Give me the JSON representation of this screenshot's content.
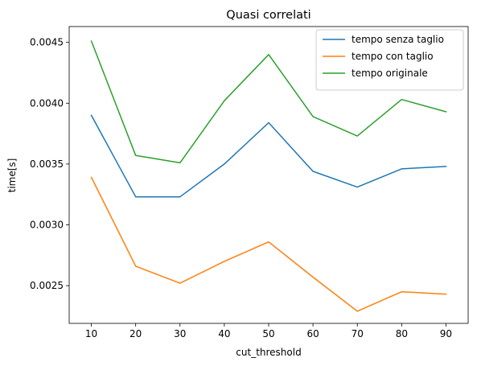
{
  "chart_data": {
    "type": "line",
    "title": "Quasi correlati",
    "xlabel": "cut_threshold",
    "ylabel": "time[s]",
    "x": [
      10,
      20,
      30,
      40,
      50,
      60,
      70,
      80,
      90
    ],
    "xlim": [
      5,
      95
    ],
    "ylim": [
      0.00219,
      0.00463
    ],
    "xticks": [
      "10",
      "20",
      "30",
      "40",
      "50",
      "60",
      "70",
      "80",
      "90"
    ],
    "xtick_values": [
      10,
      20,
      30,
      40,
      50,
      60,
      70,
      80,
      90
    ],
    "yticks": [
      "0.0025",
      "0.0030",
      "0.0035",
      "0.0040",
      "0.0045"
    ],
    "ytick_values": [
      0.0025,
      0.003,
      0.0035,
      0.004,
      0.0045
    ],
    "grid": false,
    "legend_position": "top-right",
    "series": [
      {
        "name": "tempo senza taglio",
        "color": "#1f77b4",
        "values": [
          0.0039,
          0.00323,
          0.00323,
          0.0035,
          0.00384,
          0.00344,
          0.00331,
          0.00346,
          0.00348
        ]
      },
      {
        "name": "tempo con taglio",
        "color": "#ff7f0e",
        "values": [
          0.00339,
          0.00266,
          0.00252,
          0.0027,
          0.00286,
          0.00257,
          0.00229,
          0.00245,
          0.00243
        ]
      },
      {
        "name": "tempo originale",
        "color": "#2ca02c",
        "values": [
          0.00451,
          0.00357,
          0.00351,
          0.00402,
          0.0044,
          0.00389,
          0.00373,
          0.00403,
          0.00393
        ]
      }
    ]
  }
}
